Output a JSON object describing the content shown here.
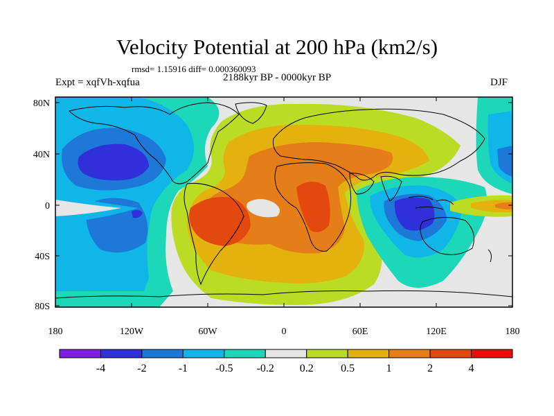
{
  "figure": {
    "title": "Velocity Potential at 200 hPa (km2/s)",
    "stats": "rmsd= 1.15916 diff= 0.000360093",
    "left_label": "Expt = xqfVh-xqfua",
    "center_label": "2188kyr BP - 0000kyr BP",
    "right_label": "DJF"
  },
  "axes": {
    "lat_ticks": [
      "80N",
      "40N",
      "0",
      "40S",
      "80S"
    ],
    "lon_ticks": [
      "180",
      "120W",
      "60W",
      "0",
      "60E",
      "120E",
      "180"
    ]
  },
  "colorbar": {
    "labels": [
      "-4",
      "-2",
      "-1",
      "-0.5",
      "-0.2",
      "0.2",
      "0.5",
      "1",
      "2",
      "4"
    ],
    "colors": [
      "#7F1FE6",
      "#2F30DA",
      "#1E78D8",
      "#10B6E7",
      "#1CD8B8",
      "#E6E6E6",
      "#BCDB24",
      "#E3B20E",
      "#E57D18",
      "#E3480E",
      "#E4110D"
    ]
  },
  "fill_colors": {
    "background": "#E6E6E6",
    "neg_weak": "#1CD8B8",
    "neg_mid": "#10B6E7",
    "neg_strong": "#1E78D8",
    "neg_max": "#2F30DA",
    "pos_weak": "#BCDB24",
    "pos_mid": "#E3B20E",
    "pos_strong": "#E57D18",
    "pos_max": "#E3480E"
  }
}
